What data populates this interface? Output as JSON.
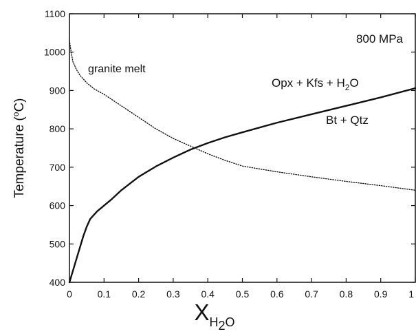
{
  "chart_data": {
    "type": "line",
    "title": "",
    "xlabel": {
      "main": "X",
      "sub": "H",
      "sub2": "2",
      "sub3": "O"
    },
    "ylabel": {
      "pre": "Temperature (",
      "sup": "o",
      "post": "C)"
    },
    "xlim": [
      0,
      1
    ],
    "ylim": [
      400,
      1100
    ],
    "xticks": [
      0,
      0.1,
      0.2,
      0.3,
      0.4,
      0.5,
      0.6,
      0.7,
      0.8,
      0.9,
      1
    ],
    "xtick_labels": [
      "0",
      "0.1",
      "0.2",
      "0.3",
      "0.4",
      "0.5",
      "0.6",
      "0.7",
      "0.8",
      "0.9",
      "1"
    ],
    "yticks": [
      400,
      500,
      600,
      700,
      800,
      900,
      1000,
      1100
    ],
    "ytick_labels": [
      "400",
      "500",
      "600",
      "700",
      "800",
      "900",
      "1000",
      "1100"
    ],
    "grid": false,
    "annotations": {
      "pressure": "800 MPa",
      "melt": "granite melt",
      "upper_field_pre": "Opx + Kfs + H",
      "upper_field_sub": "2",
      "upper_field_post": "O",
      "lower_field": "Bt + Qtz"
    },
    "series": [
      {
        "style": "solid",
        "color": "#111111",
        "x": [
          0,
          0.01,
          0.02,
          0.03,
          0.04,
          0.05,
          0.06,
          0.08,
          0.1,
          0.12,
          0.15,
          0.2,
          0.25,
          0.3,
          0.35,
          0.4,
          0.45,
          0.5,
          0.6,
          0.7,
          0.8,
          0.9,
          1.0
        ],
        "y": [
          400,
          430,
          460,
          490,
          520,
          545,
          565,
          585,
          600,
          615,
          640,
          675,
          702,
          725,
          746,
          763,
          778,
          791,
          816,
          838,
          860,
          882,
          906
        ]
      },
      {
        "style": "dotted",
        "color": "#111111",
        "x": [
          0,
          0.005,
          0.01,
          0.02,
          0.03,
          0.05,
          0.07,
          0.1,
          0.15,
          0.2,
          0.25,
          0.3,
          0.35,
          0.4,
          0.45,
          0.5,
          0.6,
          0.7,
          0.8,
          0.9,
          1.0
        ],
        "y": [
          1030,
          1000,
          975,
          955,
          940,
          920,
          905,
          890,
          860,
          830,
          800,
          775,
          755,
          735,
          718,
          703,
          688,
          675,
          663,
          652,
          640
        ]
      }
    ]
  }
}
